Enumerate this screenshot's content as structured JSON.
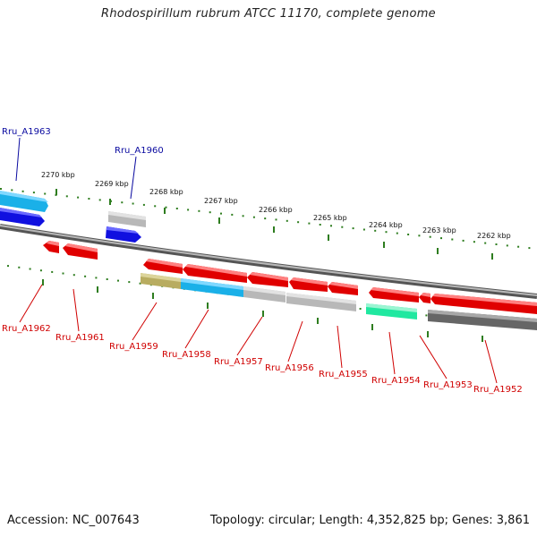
{
  "title": "Rhodospirillum rubrum ATCC 11170, complete genome",
  "footer": {
    "accession": "Accession: NC_007643",
    "summary": "Topology: circular; Length: 4,352,825 bp; Genes: 3,861"
  },
  "colors": {
    "backbone": "#8a8a8a",
    "tick": "#2e7d1f",
    "label_forward": "#0a0aa0",
    "label_reverse": "#d00000",
    "red": "#e00000",
    "blue": "#1010e0",
    "cyan": "#1ab0e8",
    "gray": "#b8b8b8",
    "dark_gray": "#666666",
    "olive": "#b8ac60",
    "green": "#20e8a0"
  },
  "kbp_labels": [
    "2270 kbp",
    "2269 kbp",
    "2268 kbp",
    "2267 kbp",
    "2266 kbp",
    "2265 kbp",
    "2264 kbp",
    "2263 kbp",
    "2262 kbp"
  ],
  "genes": [
    {
      "id": "Rru_A1963",
      "strand": "forward",
      "color": "cyan"
    },
    {
      "id": "Rru_A1960",
      "strand": "forward",
      "color": "blue"
    },
    {
      "id": "Rru_A1962",
      "strand": "reverse",
      "color": "red"
    },
    {
      "id": "Rru_A1961",
      "strand": "reverse",
      "color": "red"
    },
    {
      "id": "Rru_A1959",
      "strand": "reverse",
      "color": "red"
    },
    {
      "id": "Rru_A1958",
      "strand": "reverse",
      "color": "red"
    },
    {
      "id": "Rru_A1957",
      "strand": "reverse",
      "color": "red"
    },
    {
      "id": "Rru_A1956",
      "strand": "reverse",
      "color": "red"
    },
    {
      "id": "Rru_A1955",
      "strand": "reverse",
      "color": "red"
    },
    {
      "id": "Rru_A1954",
      "strand": "reverse",
      "color": "red"
    },
    {
      "id": "Rru_A1953",
      "strand": "reverse",
      "color": "red"
    },
    {
      "id": "Rru_A1952",
      "strand": "reverse",
      "color": "red"
    }
  ]
}
